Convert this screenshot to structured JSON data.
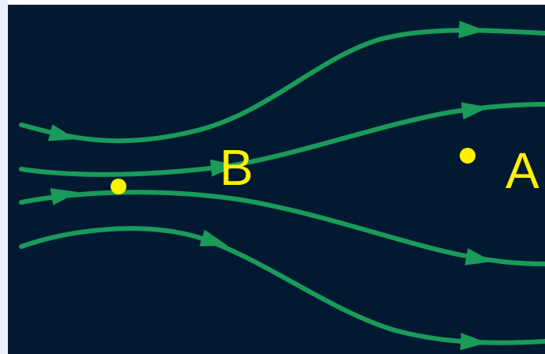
{
  "colors": {
    "background": "#021A31",
    "frame_strip": "#E8F2FA",
    "field_line": "#1A9B5A",
    "point": "#FFF200",
    "label": "#FFF200"
  },
  "labels": {
    "point_a": "A",
    "point_b": "B"
  },
  "icons": {
    "arrowhead": "triangle-arrow-icon"
  }
}
